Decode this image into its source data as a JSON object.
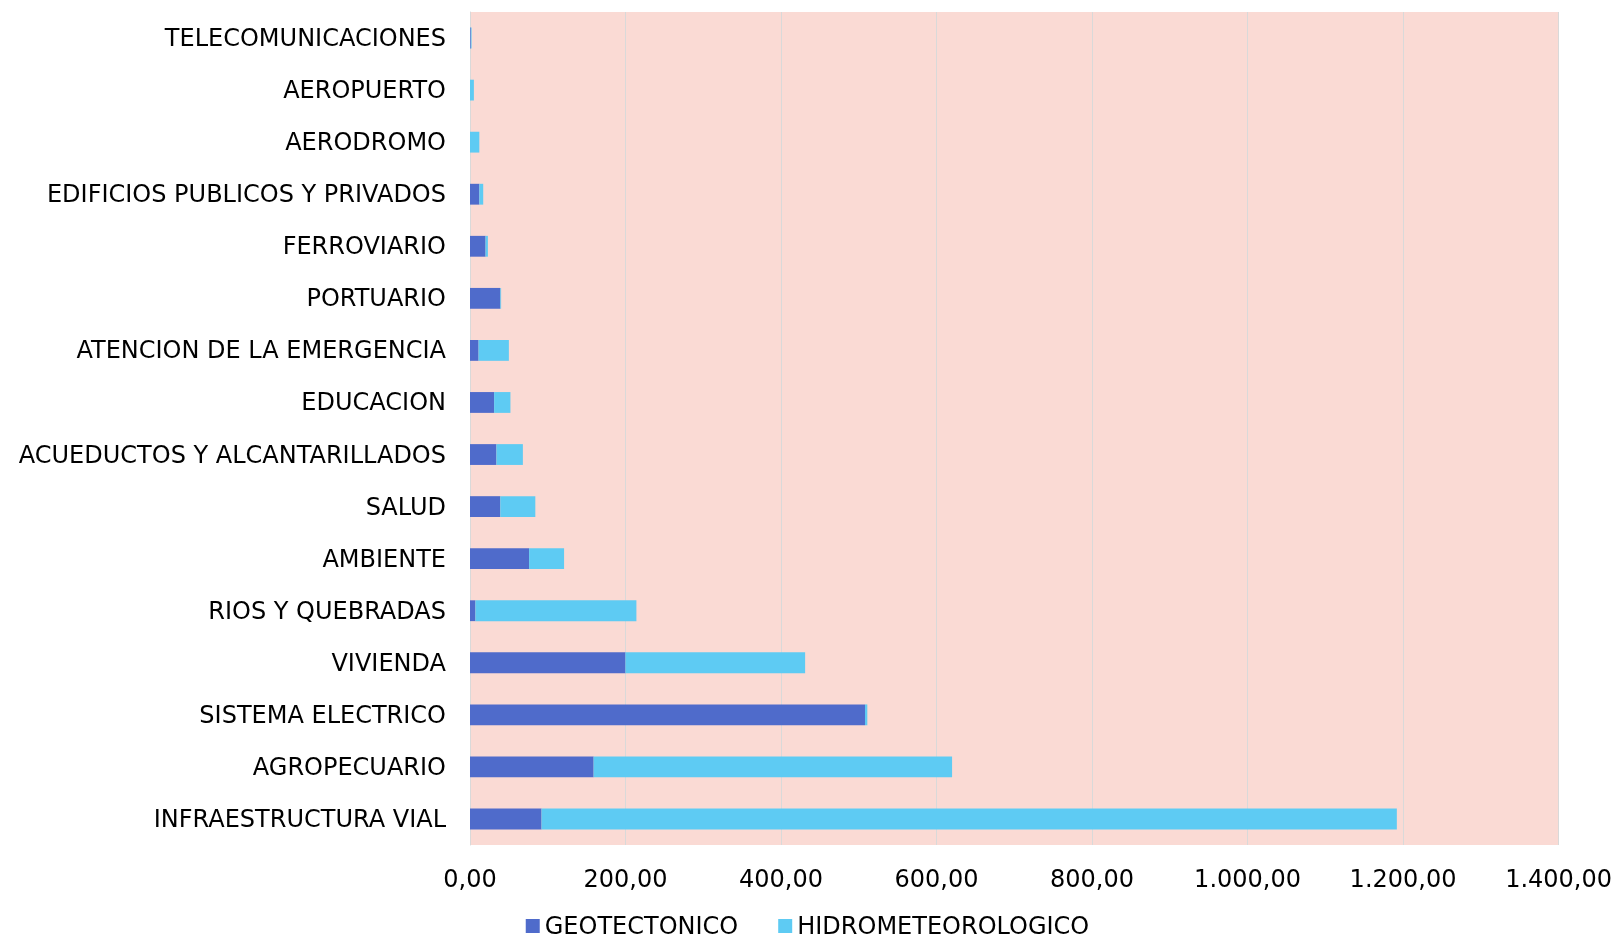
{
  "chart_data": {
    "type": "bar",
    "orientation": "horizontal",
    "stacked": true,
    "categories": [
      "TELECOMUNICACIONES",
      "AEROPUERTO",
      "AERODROMO",
      "EDIFICIOS PUBLICOS Y PRIVADOS",
      "FERROVIARIO",
      "PORTUARIO",
      "ATENCION DE LA EMERGENCIA",
      "EDUCACION",
      "ACUEDUCTOS Y ALCANTARILLADOS",
      "SALUD",
      "AMBIENTE",
      "RIOS Y QUEBRADAS",
      "VIVIENDA",
      "SISTEMA ELECTRICO",
      "AGROPECUARIO",
      "INFRAESTRUCTURA VIAL"
    ],
    "series": [
      {
        "name": "GEOTECTONICO",
        "color": "#4f6bcb",
        "values": [
          1,
          0,
          0,
          12,
          20,
          39,
          11,
          31,
          34,
          39,
          76,
          7,
          200,
          508,
          159,
          92
        ]
      },
      {
        "name": "HIDROMETEOROLOGICO",
        "color": "#5ecbf3",
        "values": [
          1,
          5,
          12,
          5,
          3,
          1,
          39,
          21,
          34,
          45,
          45,
          207,
          231,
          3,
          461,
          1100
        ]
      }
    ],
    "xlim": [
      0,
      1400
    ],
    "xticks": [
      {
        "value": 0,
        "label": "0,00"
      },
      {
        "value": 200,
        "label": "200,00"
      },
      {
        "value": 400,
        "label": "400,00"
      },
      {
        "value": 600,
        "label": "600,00"
      },
      {
        "value": 800,
        "label": "800,00"
      },
      {
        "value": 1000,
        "label": "1.000,00"
      },
      {
        "value": 1200,
        "label": "1.200,00"
      },
      {
        "value": 1400,
        "label": "1.400,00"
      }
    ],
    "grid": "x",
    "legend": "bottom"
  }
}
